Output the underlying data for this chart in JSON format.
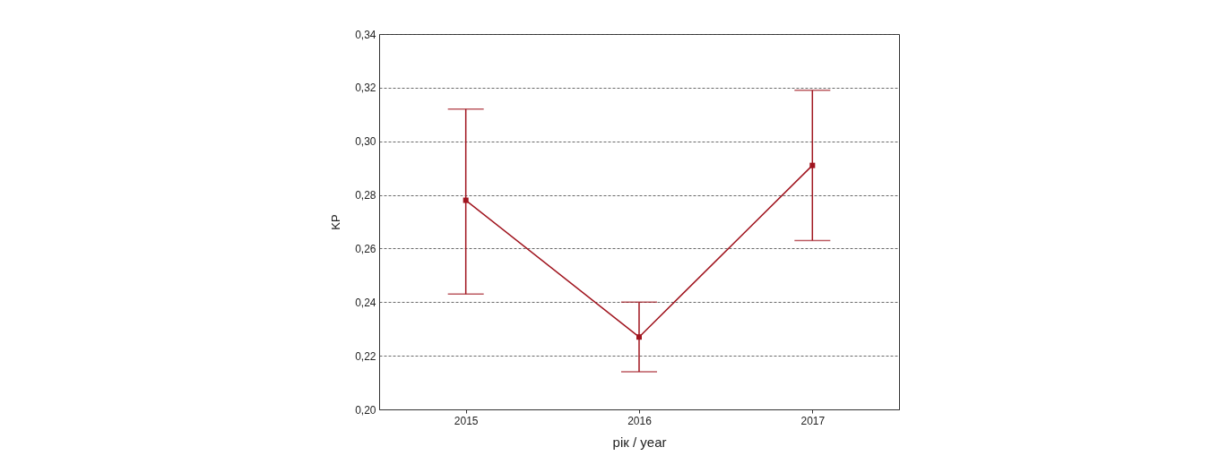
{
  "chart_data": {
    "type": "line",
    "xlabel": "рік / year",
    "ylabel": "KP",
    "categories": [
      "2015",
      "2016",
      "2017"
    ],
    "series": [
      {
        "color": "#a0141e",
        "values": [
          0.278,
          0.227,
          0.291
        ],
        "errors": [
          [
            0.243,
            0.312
          ],
          [
            0.214,
            0.24
          ],
          [
            0.263,
            0.319
          ]
        ]
      }
    ],
    "ylim": [
      0.2,
      0.34
    ],
    "yticks": [
      {
        "value": 0.2,
        "label": "0,20"
      },
      {
        "value": 0.22,
        "label": "0,22"
      },
      {
        "value": 0.24,
        "label": "0,24"
      },
      {
        "value": 0.26,
        "label": "0,26"
      },
      {
        "value": 0.28,
        "label": "0,28"
      },
      {
        "value": 0.3,
        "label": "0,30"
      },
      {
        "value": 0.32,
        "label": "0,32"
      },
      {
        "value": 0.34,
        "label": "0,34"
      }
    ],
    "grid": "y",
    "marker": "square",
    "line_style": "solid"
  }
}
